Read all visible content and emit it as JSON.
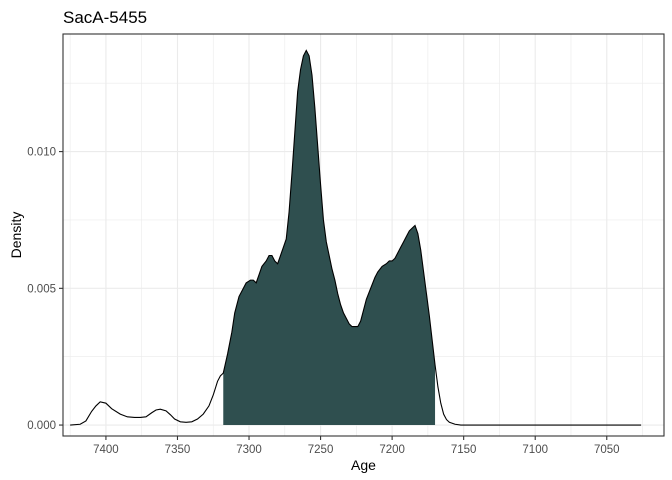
{
  "chart_data": {
    "type": "area",
    "title": "SacA-5455",
    "xlabel": "Age",
    "ylabel": "Density",
    "x_reversed": true,
    "xlim": [
      7430,
      7010
    ],
    "ylim": [
      -0.0004,
      0.0143
    ],
    "x_ticks": [
      7400,
      7350,
      7300,
      7250,
      7200,
      7150,
      7100,
      7050
    ],
    "x_tick_labels": [
      "7400",
      "7350",
      "7300",
      "7250",
      "7200",
      "7150",
      "7100",
      "7050"
    ],
    "y_ticks": [
      0.0,
      0.005,
      0.01
    ],
    "y_tick_labels": [
      "0.000",
      "0.005",
      "0.010"
    ],
    "grid": true,
    "legend": "none",
    "colors": {
      "fill": "#2f4f4f",
      "line": "#000000",
      "grid": "#ebebeb",
      "frame": "#333333"
    },
    "highlight_range": [
      7318,
      7170
    ],
    "series": [
      {
        "x": [
          7425,
          7418,
          7414,
          7410,
          7407,
          7404,
          7400,
          7396,
          7390,
          7385,
          7380,
          7376,
          7372,
          7368,
          7365,
          7362,
          7358,
          7355,
          7352,
          7348,
          7344,
          7340,
          7336,
          7332,
          7328,
          7325,
          7322,
          7320,
          7318,
          7315,
          7312,
          7310,
          7307,
          7304,
          7302,
          7299,
          7297,
          7295,
          7293,
          7291,
          7288,
          7286,
          7284,
          7282,
          7280,
          7278,
          7276,
          7274,
          7272,
          7270,
          7268,
          7266,
          7264,
          7262,
          7260,
          7258,
          7256,
          7254,
          7252,
          7250,
          7248,
          7246,
          7244,
          7242,
          7240,
          7238,
          7236,
          7234,
          7232,
          7230,
          7228,
          7226,
          7224,
          7222,
          7220,
          7218,
          7215,
          7212,
          7210,
          7207,
          7204,
          7202,
          7200,
          7198,
          7196,
          7194,
          7192,
          7190,
          7188,
          7186,
          7184,
          7182,
          7180,
          7178,
          7176,
          7174,
          7172,
          7170,
          7168,
          7166,
          7164,
          7162,
          7160,
          7156,
          7152,
          7150,
          7100,
          7050,
          7026
        ],
        "y": [
          0.0,
          3e-05,
          0.00015,
          0.0005,
          0.0007,
          0.00085,
          0.0008,
          0.0006,
          0.0004,
          0.0003,
          0.00028,
          0.00028,
          0.0003,
          0.00045,
          0.00055,
          0.00058,
          0.00052,
          0.00038,
          0.00022,
          0.00012,
          0.0001,
          0.00012,
          0.00022,
          0.0004,
          0.0007,
          0.0011,
          0.0016,
          0.0018,
          0.0019,
          0.0026,
          0.0034,
          0.0041,
          0.0047,
          0.005,
          0.0052,
          0.0053,
          0.0053,
          0.0052,
          0.0055,
          0.0058,
          0.006,
          0.0062,
          0.0062,
          0.006,
          0.0059,
          0.0062,
          0.0065,
          0.0068,
          0.0078,
          0.0092,
          0.0107,
          0.0122,
          0.013,
          0.0135,
          0.0137,
          0.0135,
          0.0128,
          0.0116,
          0.0102,
          0.0088,
          0.0075,
          0.0067,
          0.0062,
          0.0057,
          0.0053,
          0.0048,
          0.0044,
          0.0041,
          0.0039,
          0.0037,
          0.0036,
          0.0036,
          0.0036,
          0.0038,
          0.0042,
          0.0046,
          0.005,
          0.0054,
          0.0056,
          0.0058,
          0.0059,
          0.006,
          0.006,
          0.0061,
          0.0063,
          0.0065,
          0.0067,
          0.0069,
          0.0071,
          0.0072,
          0.0073,
          0.007,
          0.0064,
          0.0056,
          0.0048,
          0.004,
          0.0031,
          0.0022,
          0.0014,
          0.0008,
          0.0004,
          0.0002,
          0.0001,
          3e-05,
          0.0,
          0.0,
          0.0,
          0.0,
          0.0
        ]
      }
    ]
  }
}
